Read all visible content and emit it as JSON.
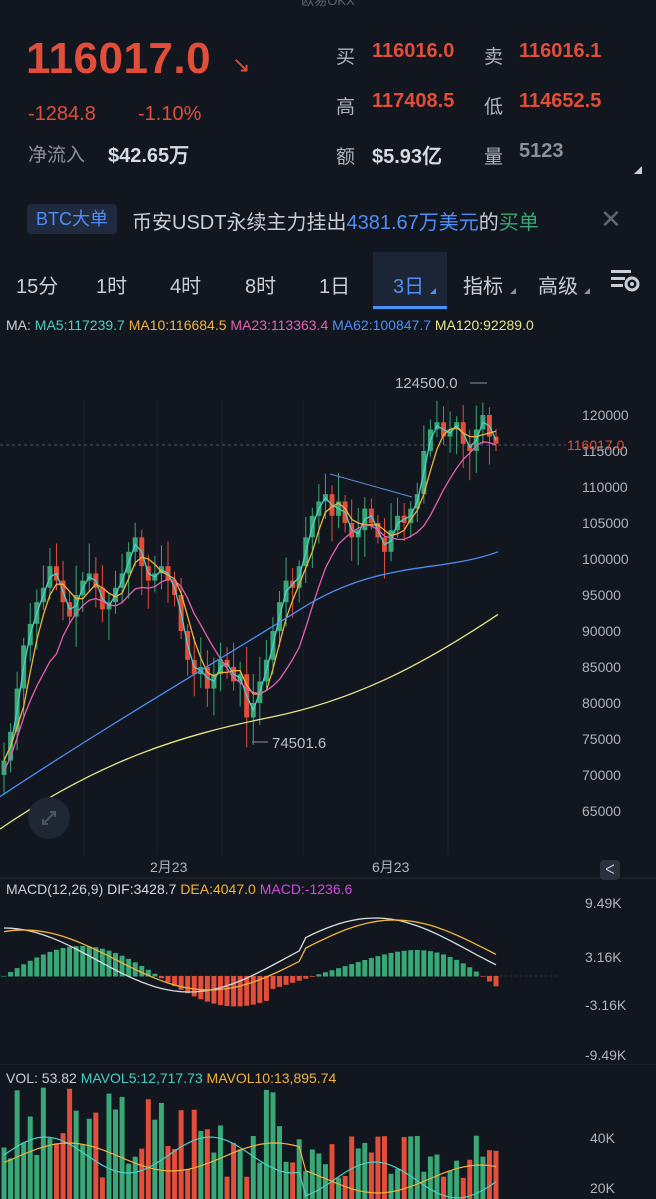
{
  "header": {
    "top_cut_text": "欧易OKX",
    "last_price": "116017.0",
    "change_abs": "-1284.8",
    "change_pct": "-1.10%",
    "net_inflow_label": "净流入",
    "net_inflow_value": "$42.65万",
    "stats": [
      {
        "label": "买",
        "value": "116016.0",
        "tone": "red"
      },
      {
        "label": "卖",
        "value": "116016.1",
        "tone": "red"
      },
      {
        "label": "高",
        "value": "117408.5",
        "tone": "red"
      },
      {
        "label": "低",
        "value": "114652.5",
        "tone": "red"
      },
      {
        "label": "额",
        "value": "$5.93亿",
        "tone": "white"
      },
      {
        "label": "量",
        "value": "5123",
        "tone": "grey"
      }
    ]
  },
  "banner": {
    "badge": "BTC大单",
    "text_a": "币安USDT永续主力挂出",
    "text_amount": "4381.67万美元",
    "text_b": "的",
    "text_side": "买单"
  },
  "timeframes": [
    "15分",
    "1时",
    "4时",
    "8时",
    "1日",
    "3日",
    "指标",
    "高级"
  ],
  "active_timeframe": "3日",
  "icons": {
    "settings": "chart-settings-icon",
    "close": "close-icon",
    "arrow": "arrow-down-right-icon"
  },
  "ma_legend": [
    {
      "text": "MA:",
      "color": "#c9ced8"
    },
    {
      "text": "MA5:117239.7",
      "color": "#4dd0c4"
    },
    {
      "text": "MA10:116684.5",
      "color": "#f2b33d"
    },
    {
      "text": "MA23:113363.4",
      "color": "#e85fb3"
    },
    {
      "text": "MA62:100847.7",
      "color": "#4f8ef7"
    },
    {
      "text": "MA120:92289.0",
      "color": "#e6e58a"
    }
  ],
  "price_axis": [
    "120000",
    "115000",
    "110000",
    "105000",
    "100000",
    "95000",
    "90000",
    "85000",
    "80000",
    "75000",
    "70000",
    "65000"
  ],
  "current_price_tag": "116017.0",
  "high_label": "124500.0",
  "low_label": "74501.6",
  "date_labels": [
    "2月23",
    "6月23"
  ],
  "macd_legend": [
    {
      "text": "MACD(12,26,9)",
      "color": "#c9ced8"
    },
    {
      "text": "DIF:3428.7",
      "color": "#d7dbe2"
    },
    {
      "text": "DEA:4047.0",
      "color": "#f2b33d"
    },
    {
      "text": "MACD:-1236.6",
      "color": "#d24be0"
    }
  ],
  "macd_axis": [
    "9.49K",
    "3.16K",
    "-3.16K",
    "-9.49K"
  ],
  "vol_legend": [
    {
      "text": "VOL: 53.82",
      "color": "#c9ced8"
    },
    {
      "text": "MAVOL5:12,717.73",
      "color": "#4dd0c4"
    },
    {
      "text": "MAVOL10:13,895.74",
      "color": "#f2b33d"
    }
  ],
  "vol_axis": [
    "40K",
    "20K"
  ],
  "chart_data": {
    "type": "candlestick",
    "last": 116017.0,
    "high": 124500.0,
    "low": 74501.6,
    "ylim": [
      62000,
      127000
    ],
    "close_path": [
      72000,
      76000,
      82000,
      88000,
      91000,
      94000,
      96000,
      99000,
      97000,
      94000,
      92000,
      95000,
      97000,
      98000,
      96000,
      93000,
      94000,
      96000,
      98000,
      101000,
      103000,
      99000,
      97000,
      98000,
      99000,
      97000,
      95000,
      90000,
      86000,
      84000,
      85000,
      82000,
      84000,
      86000,
      85000,
      83000,
      84000,
      78000,
      80000,
      83000,
      86000,
      90000,
      94000,
      97000,
      96000,
      99000,
      103000,
      106000,
      108000,
      109000,
      106000,
      108000,
      105000,
      103000,
      104000,
      107000,
      105000,
      103000,
      101000,
      104000,
      106000,
      105000,
      107000,
      109000,
      115000,
      118000,
      119000,
      117000,
      118000,
      119000,
      116000,
      115000,
      118000,
      120000,
      117000,
      116017
    ]
  }
}
